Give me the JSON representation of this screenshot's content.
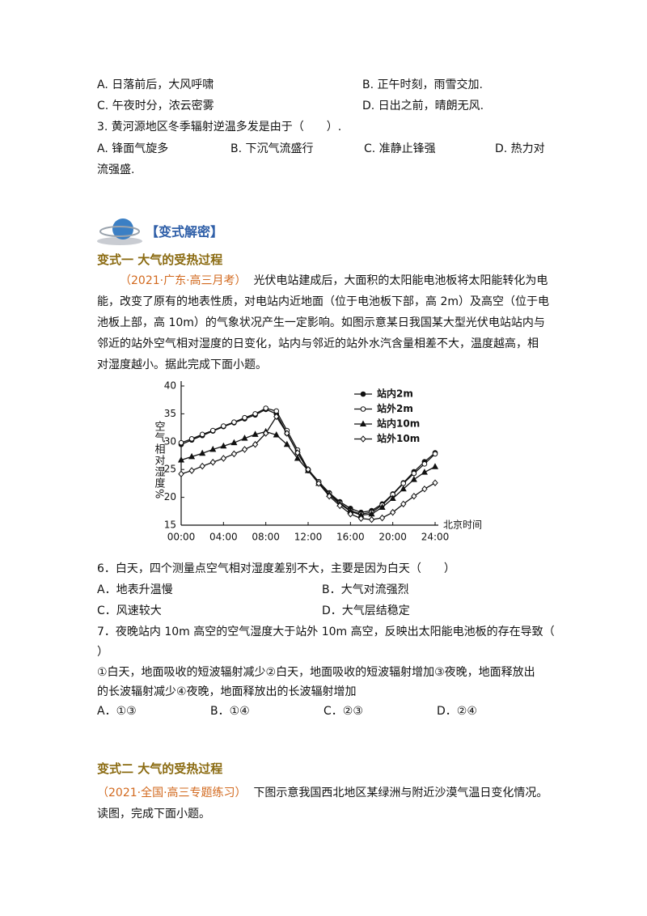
{
  "q2_options": [
    "A. 日落前后，大风呼啸",
    "B. 正午时刻，雨雪交加.",
    "C. 午夜时分，浓云密雾",
    "D. 日出之前，晴朗无风."
  ],
  "q3": {
    "stem": "3. 黄河源地区冬季辐射逆温多发是由于（　　）.",
    "options": [
      "A. 锋面气旋多",
      "B. 下沉气流盛行",
      "C. 准静止锋强",
      "D. 热力对"
    ],
    "continuation": "流强盛."
  },
  "section_title": "【变式解密】",
  "variant1": {
    "title": "变式一  大气的受热过程",
    "source": "（2021·广东·高三月考）",
    "passage": [
      "光伏电站建成后，大面积的太阳能电池板将太阳能转化为电",
      "能，改变了原有的地表性质，对电站内近地面（位于电池板下部，高 2m）及高空（位于电",
      "池板上部，高 10m）的气象状况产生一定影响。如图示意某日我国某大型光伏电站站内与",
      "邻近的站外空气相对湿度的日变化，站内与邻近的站外水汽含量相差不大，温度越高，相",
      "对湿度越小。据此完成下面小题。"
    ]
  },
  "chart_data": {
    "type": "line",
    "xlabel": "北京时间",
    "ylabel": "空气相对湿度%",
    "x": [
      0,
      1,
      2,
      3,
      4,
      5,
      6,
      7,
      8,
      9,
      10,
      11,
      12,
      13,
      14,
      15,
      16,
      17,
      18,
      19,
      20,
      21,
      22,
      23,
      24
    ],
    "xlim": [
      0,
      24
    ],
    "xticks": [
      {
        "value": 0,
        "label": "00:00"
      },
      {
        "value": 4,
        "label": "04:00"
      },
      {
        "value": 8,
        "label": "08:00"
      },
      {
        "value": 12,
        "label": "12:00"
      },
      {
        "value": 16,
        "label": "16:00"
      },
      {
        "value": 20,
        "label": "20:00"
      },
      {
        "value": 24,
        "label": "24:00"
      }
    ],
    "ylim": [
      15,
      40
    ],
    "yticks": [
      15,
      20,
      25,
      30,
      35,
      40
    ],
    "legend": "top-right",
    "series": [
      {
        "name": "站内2m",
        "color": "#111111",
        "marker": "filled-circle",
        "values": [
          29.5,
          30.3,
          31.1,
          31.9,
          32.7,
          33.4,
          34.1,
          34.8,
          35.8,
          35,
          31.5,
          28,
          24.8,
          22.8,
          20.8,
          19.2,
          18,
          17.3,
          17.6,
          18.8,
          20.6,
          22.6,
          24.6,
          26.4,
          28
        ]
      },
      {
        "name": "站外2m",
        "color": "#111111",
        "marker": "open-circle",
        "values": [
          29.8,
          30.5,
          31.3,
          32,
          32.8,
          33.5,
          34.3,
          35,
          36,
          35.5,
          32,
          28.5,
          25,
          22.8,
          20.7,
          19,
          17.6,
          17,
          17.3,
          18.6,
          20.5,
          22.5,
          24.3,
          26,
          27.8
        ]
      },
      {
        "name": "站内10m",
        "color": "#111111",
        "marker": "filled-triangle",
        "values": [
          26.7,
          27.3,
          27.9,
          28.6,
          29.2,
          29.8,
          30.6,
          31.3,
          31.8,
          31.2,
          29.5,
          27,
          24.8,
          22.5,
          20.5,
          18.8,
          17.5,
          16.8,
          17,
          18.2,
          19.8,
          21.5,
          23.2,
          24.5,
          25.5
        ]
      },
      {
        "name": "站外10m",
        "color": "#111111",
        "marker": "open-diamond",
        "values": [
          24.2,
          24.8,
          25.6,
          26.3,
          27,
          27.8,
          28.6,
          29.5,
          31.5,
          34.5,
          31.5,
          28,
          25,
          22.5,
          20.2,
          18.5,
          17,
          16.2,
          16,
          16.3,
          17.3,
          18.8,
          20.2,
          21.5,
          22.6
        ]
      }
    ]
  },
  "q6": {
    "stem": "6．白天，四个测量点空气相对湿度差别不大，主要是因为白天（　　）",
    "options": [
      "A．地表升温慢",
      "B．大气对流强烈",
      "C．风速较大",
      "D．大气层结稳定"
    ]
  },
  "q7": {
    "stem": [
      "7．夜晚站内 10m 高空的空气湿度大于站外 10m 高空，反映出太阳能电池板的存在导致（",
      "）"
    ],
    "statements": [
      "①白天，地面吸收的短波辐射减少②白天，地面吸收的短波辐射增加③夜晚，地面释放出",
      "的长波辐射减少④夜晚，地面释放出的长波辐射增加"
    ],
    "options": [
      "A．①③",
      "B．①④",
      "C．②③",
      "D．②④"
    ]
  },
  "variant2": {
    "title": "变式二  大气的受热过程",
    "source": "（2021·全国·高三专题练习）",
    "passage": [
      "下图示意我国西北地区某绿洲与附近沙漠气温日变化情况。",
      "读图，完成下面小题。"
    ]
  }
}
